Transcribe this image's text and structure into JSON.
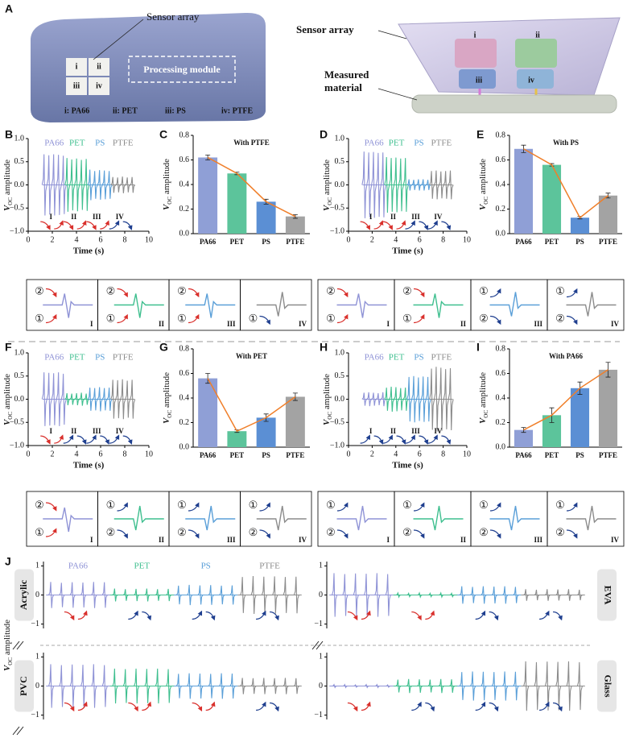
{
  "panel_a": {
    "label": "A",
    "left": {
      "sensor_array": "Sensor array",
      "processing_module": "Processing module",
      "cells": [
        "i",
        "ii",
        "iii",
        "iv"
      ],
      "legend": [
        "i: PA66",
        "ii: PET",
        "iii: PS",
        "iv: PTFE"
      ]
    },
    "right": {
      "sensor_array": "Sensor array",
      "measured_material": [
        "Measured",
        "material"
      ],
      "cells": [
        "i",
        "ii",
        "iii",
        "iv"
      ]
    }
  },
  "chart_data": [
    {
      "type": "waveform",
      "panel": "B",
      "xlabel": "Time (s)",
      "ylabel": {
        "symbol": "V",
        "subscript": "OC",
        "text": "amplitude"
      },
      "xlim": [
        0,
        10
      ],
      "xticks": [
        0,
        2,
        4,
        6,
        8,
        10
      ],
      "ylim": [
        -1,
        1
      ],
      "yticks": [
        {
          "value": -1,
          "label": "−1.0"
        },
        {
          "value": -0.5,
          "label": "−0.5"
        },
        {
          "value": 0,
          "label": "0.0"
        },
        0.5,
        {
          "value": 1,
          "label": "1.0"
        }
      ],
      "series": [
        {
          "name": "PA66",
          "color": "#8f93d6",
          "values": [
            0.66,
            0.64,
            0.66,
            0.65,
            0.63
          ]
        },
        {
          "name": "PET",
          "color": "#3fbf8f",
          "values": [
            0.58,
            0.55,
            0.57,
            0.54,
            0.56
          ]
        },
        {
          "name": "PS",
          "color": "#5a9fd8",
          "values": [
            0.33,
            0.3,
            0.32,
            0.31,
            0.3
          ]
        },
        {
          "name": "PTFE",
          "color": "#8c8c8c",
          "values": [
            0.17,
            0.16,
            0.18,
            0.16,
            0.17
          ]
        }
      ],
      "segment_labels": [
        "I",
        "II",
        "III",
        "IV"
      ],
      "arrow_colors": [
        "#d9302c",
        "#d9302c",
        "#d9302c",
        "#1f3f8f"
      ],
      "insets": [
        {
          "upper": "②",
          "lower": "①"
        },
        {
          "upper": "②",
          "lower": "①"
        },
        {
          "upper": "②",
          "lower": "①"
        },
        {
          "lower": "①"
        }
      ]
    },
    {
      "type": "bar",
      "panel": "C",
      "title": "With PTFE",
      "ylabel": {
        "symbol": "V",
        "subscript": "OC",
        "text": "amplitude"
      },
      "categories": [
        "PA66",
        "PET",
        "PS",
        "PTFE"
      ],
      "values": [
        0.62,
        0.49,
        0.26,
        0.14
      ],
      "errors": [
        0.02,
        0.01,
        0.02,
        0.015
      ],
      "colors": [
        "#8f9fd6",
        "#5cc49b",
        "#5b8fd4",
        "#a3a3a3"
      ],
      "line_color": "#f07f2a",
      "ylim": [
        0,
        0.8
      ],
      "yticks": [
        {
          "value": 0,
          "label": "0.0"
        },
        0.2,
        0.4,
        0.6,
        0.8
      ]
    },
    {
      "type": "waveform",
      "panel": "D",
      "xlabel": "Time (s)",
      "ylabel": {
        "symbol": "V",
        "subscript": "OC",
        "text": "amplitude"
      },
      "xlim": [
        0,
        10
      ],
      "xticks": [
        0,
        2,
        4,
        6,
        8,
        10
      ],
      "ylim": [
        -1,
        1
      ],
      "yticks": [
        {
          "value": -1,
          "label": "−1.0"
        },
        {
          "value": -0.5,
          "label": "−0.5"
        },
        {
          "value": 0,
          "label": "0.0"
        },
        0.5,
        {
          "value": 1,
          "label": "1.0"
        }
      ],
      "series": [
        {
          "name": "PA66",
          "color": "#8f93d6",
          "values": [
            0.72,
            0.7,
            0.71,
            0.69,
            0.7
          ]
        },
        {
          "name": "PET",
          "color": "#3fbf8f",
          "values": [
            0.6,
            0.58,
            0.59,
            0.57,
            0.58
          ]
        },
        {
          "name": "PS",
          "color": "#5a9fd8",
          "values": [
            0.12,
            0.11,
            0.12,
            0.12,
            0.11
          ]
        },
        {
          "name": "PTFE",
          "color": "#8c8c8c",
          "values": [
            0.3,
            0.31,
            0.29,
            0.3,
            0.31
          ]
        }
      ],
      "segment_labels": [
        "I",
        "II",
        "III",
        "IV"
      ],
      "arrow_colors": [
        "#d9302c",
        "#d9302c",
        "#1f3f8f",
        "#1f3f8f"
      ],
      "insets": [
        {
          "upper": "②",
          "lower": "①"
        },
        {
          "upper": "②",
          "lower": "①"
        },
        {
          "upper": "①",
          "lower": "②"
        },
        {
          "upper": "①",
          "lower": "②"
        }
      ]
    },
    {
      "type": "bar",
      "panel": "E",
      "title": "With PS",
      "ylabel": {
        "symbol": "V",
        "subscript": "OC",
        "text": "amplitude"
      },
      "categories": [
        "PA66",
        "PET",
        "PS",
        "PTFE"
      ],
      "values": [
        0.69,
        0.56,
        0.13,
        0.31
      ],
      "errors": [
        0.03,
        0.01,
        0.01,
        0.02
      ],
      "colors": [
        "#8f9fd6",
        "#5cc49b",
        "#5b8fd4",
        "#a3a3a3"
      ],
      "line_color": "#f07f2a",
      "ylim": [
        0,
        0.8
      ],
      "yticks": [
        {
          "value": 0,
          "label": "0.0"
        },
        0.2,
        0.4,
        0.6,
        0.8
      ]
    },
    {
      "type": "waveform",
      "panel": "F",
      "xlabel": "Time (s)",
      "ylabel": {
        "symbol": "V",
        "subscript": "OC",
        "text": "amplitude"
      },
      "xlim": [
        0,
        10
      ],
      "xticks": [
        0,
        2,
        4,
        6,
        8,
        10
      ],
      "ylim": [
        -1,
        1
      ],
      "yticks": [
        {
          "value": -1,
          "label": "−1.0"
        },
        {
          "value": -0.5,
          "label": "−0.5"
        },
        {
          "value": 0,
          "label": "0.0"
        },
        0.5,
        {
          "value": 1,
          "label": "1.0"
        }
      ],
      "series": [
        {
          "name": "PA66",
          "color": "#8f93d6",
          "values": [
            0.58,
            0.57,
            0.56,
            0.58,
            0.55
          ]
        },
        {
          "name": "PET",
          "color": "#3fbf8f",
          "values": [
            0.13,
            0.12,
            0.13,
            0.14,
            0.12
          ]
        },
        {
          "name": "PS",
          "color": "#5a9fd8",
          "values": [
            0.25,
            0.24,
            0.26,
            0.24,
            0.25
          ]
        },
        {
          "name": "PTFE",
          "color": "#8c8c8c",
          "values": [
            0.42,
            0.41,
            0.43,
            0.4,
            0.42
          ]
        }
      ],
      "segment_labels": [
        "I",
        "II",
        "III",
        "IV"
      ],
      "arrow_colors": [
        "#d9302c",
        "#1f3f8f",
        "#1f3f8f",
        "#1f3f8f"
      ],
      "insets": [
        {
          "upper": "②",
          "lower": "①"
        },
        {
          "upper": "①",
          "lower": "②"
        },
        {
          "upper": "①",
          "lower": "②"
        },
        {
          "upper": "①",
          "lower": "②"
        }
      ]
    },
    {
      "type": "bar",
      "panel": "G",
      "title": "With PET",
      "ylabel": {
        "symbol": "V",
        "subscript": "OC",
        "text": "amplitude"
      },
      "categories": [
        "PA66",
        "PET",
        "PS",
        "PTFE"
      ],
      "values": [
        0.56,
        0.13,
        0.24,
        0.41
      ],
      "errors": [
        0.04,
        0.01,
        0.03,
        0.03
      ],
      "colors": [
        "#8f9fd6",
        "#5cc49b",
        "#5b8fd4",
        "#a3a3a3"
      ],
      "line_color": "#f07f2a",
      "ylim": [
        0,
        0.8
      ],
      "yticks": [
        {
          "value": 0,
          "label": "0.0"
        },
        0.2,
        0.4,
        0.6,
        0.8
      ]
    },
    {
      "type": "waveform",
      "panel": "H",
      "xlabel": "Time (s)",
      "ylabel": {
        "symbol": "V",
        "subscript": "OC",
        "text": "amplitude"
      },
      "xlim": [
        0,
        10
      ],
      "xticks": [
        0,
        2,
        4,
        6,
        8,
        10
      ],
      "ylim": [
        -1,
        1
      ],
      "yticks": [
        {
          "value": -1,
          "label": "−1.0"
        },
        {
          "value": -0.5,
          "label": "−0.5"
        },
        {
          "value": 0,
          "label": "0.0"
        },
        0.5,
        {
          "value": 1,
          "label": "1.0"
        }
      ],
      "series": [
        {
          "name": "PA66",
          "color": "#8f93d6",
          "values": [
            0.14,
            0.15,
            0.14,
            0.13,
            0.15
          ]
        },
        {
          "name": "PET",
          "color": "#3fbf8f",
          "values": [
            0.25,
            0.27,
            0.26,
            0.24,
            0.25
          ]
        },
        {
          "name": "PS",
          "color": "#5a9fd8",
          "values": [
            0.48,
            0.5,
            0.47,
            0.49,
            0.48
          ]
        },
        {
          "name": "PTFE",
          "color": "#8c8c8c",
          "values": [
            0.66,
            0.7,
            0.68,
            0.65,
            0.67
          ]
        }
      ],
      "segment_labels": [
        "I",
        "II",
        "III",
        "IV"
      ],
      "arrow_colors": [
        "#1f3f8f",
        "#1f3f8f",
        "#1f3f8f",
        "#1f3f8f"
      ],
      "insets": [
        {
          "upper": "①",
          "lower": "②"
        },
        {
          "upper": "①",
          "lower": "②"
        },
        {
          "upper": "①",
          "lower": "②"
        },
        {
          "upper": "①",
          "lower": "②"
        }
      ]
    },
    {
      "type": "bar",
      "panel": "I",
      "title": "With PA66",
      "ylabel": {
        "symbol": "V",
        "subscript": "OC",
        "text": "amplitude"
      },
      "categories": [
        "PA66",
        "PET",
        "PS",
        "PTFE"
      ],
      "values": [
        0.14,
        0.26,
        0.48,
        0.63
      ],
      "errors": [
        0.02,
        0.06,
        0.05,
        0.06
      ],
      "colors": [
        "#8f9fd6",
        "#5cc49b",
        "#5b8fd4",
        "#a3a3a3"
      ],
      "line_color": "#f07f2a",
      "ylim": [
        0,
        0.8
      ],
      "yticks": [
        {
          "value": 0,
          "label": "0.0"
        },
        0.2,
        0.4,
        0.6,
        0.8
      ]
    },
    {
      "type": "waveform",
      "panel": "J",
      "strip_label": "Acrylic",
      "ylabel": {
        "symbol": "V",
        "subscript": "OC",
        "text": "amplitude"
      },
      "ylim": [
        -1.15,
        1.15
      ],
      "yticks": [
        {
          "value": -1,
          "label": "−1"
        },
        0,
        1
      ],
      "series": [
        {
          "name": "PA66",
          "color": "#8f93d6",
          "values": [
            0.45,
            0.42,
            0.44,
            0.43,
            0.45,
            0.44
          ]
        },
        {
          "name": "PET",
          "color": "#3fbf8f",
          "values": [
            0.22,
            0.2,
            0.21,
            0.22,
            0.2,
            0.21
          ]
        },
        {
          "name": "PS",
          "color": "#5a9fd8",
          "values": [
            0.32,
            0.35,
            0.33,
            0.34,
            0.32,
            0.33
          ]
        },
        {
          "name": "PTFE",
          "color": "#8c8c8c",
          "values": [
            0.62,
            0.65,
            0.63,
            0.64,
            0.62,
            0.63
          ]
        }
      ],
      "arrow_colors": [
        "#d9302c",
        "#1f3f8f",
        "#1f3f8f",
        "#1f3f8f"
      ]
    },
    {
      "type": "waveform",
      "strip_label": "EVA",
      "ylim": [
        -1.15,
        1.15
      ],
      "yticks": [
        {
          "value": -1,
          "label": "−1"
        },
        0,
        1
      ],
      "series": [
        {
          "color": "#8f93d6",
          "values": [
            0.75,
            0.72,
            0.74,
            0.73,
            0.75,
            0.72
          ]
        },
        {
          "color": "#3fbf8f",
          "values": [
            0.07,
            0.06,
            0.07,
            0.06,
            0.07,
            0.06
          ]
        },
        {
          "color": "#5a9fd8",
          "values": [
            0.3,
            0.28,
            0.3,
            0.29,
            0.3,
            0.28
          ]
        },
        {
          "color": "#8c8c8c",
          "values": [
            0.2,
            0.18,
            0.2,
            0.19,
            0.2,
            0.18
          ]
        }
      ],
      "arrow_colors": [
        "#d9302c",
        "#d9302c",
        "#1f3f8f",
        "#1f3f8f"
      ]
    },
    {
      "type": "waveform",
      "strip_label": "PVC",
      "ylim": [
        -1.15,
        1.15
      ],
      "yticks": [
        {
          "value": -1,
          "label": "−1"
        },
        0,
        1
      ],
      "series": [
        {
          "color": "#8f93d6",
          "values": [
            0.75,
            0.72,
            0.74,
            0.73,
            0.75,
            0.72
          ]
        },
        {
          "color": "#3fbf8f",
          "values": [
            0.6,
            0.58,
            0.6,
            0.59,
            0.6,
            0.58
          ]
        },
        {
          "color": "#5a9fd8",
          "values": [
            0.42,
            0.44,
            0.43,
            0.42,
            0.44,
            0.43
          ]
        },
        {
          "color": "#8c8c8c",
          "values": [
            0.28,
            0.27,
            0.28,
            0.27,
            0.28,
            0.27
          ]
        }
      ],
      "arrow_colors": [
        "#d9302c",
        "#d9302c",
        "#d9302c",
        "#1f3f8f"
      ]
    },
    {
      "type": "waveform",
      "strip_label": "Glass",
      "ylim": [
        -1.15,
        1.15
      ],
      "yticks": [
        {
          "value": -1,
          "label": "−1"
        },
        0,
        1
      ],
      "series": [
        {
          "color": "#8f93d6",
          "values": [
            0.05,
            0.05,
            0.04,
            0.05,
            0.05,
            0.04
          ]
        },
        {
          "color": "#3fbf8f",
          "values": [
            0.22,
            0.24,
            0.23,
            0.22,
            0.24,
            0.23
          ]
        },
        {
          "color": "#5a9fd8",
          "values": [
            0.48,
            0.5,
            0.49,
            0.48,
            0.5,
            0.49
          ]
        },
        {
          "color": "#8c8c8c",
          "values": [
            0.85,
            0.82,
            0.84,
            0.83,
            0.85,
            0.82
          ]
        }
      ],
      "arrow_colors": [
        "#d9302c",
        "#1f3f8f",
        "#1f3f8f",
        "#1f3f8f"
      ]
    }
  ]
}
